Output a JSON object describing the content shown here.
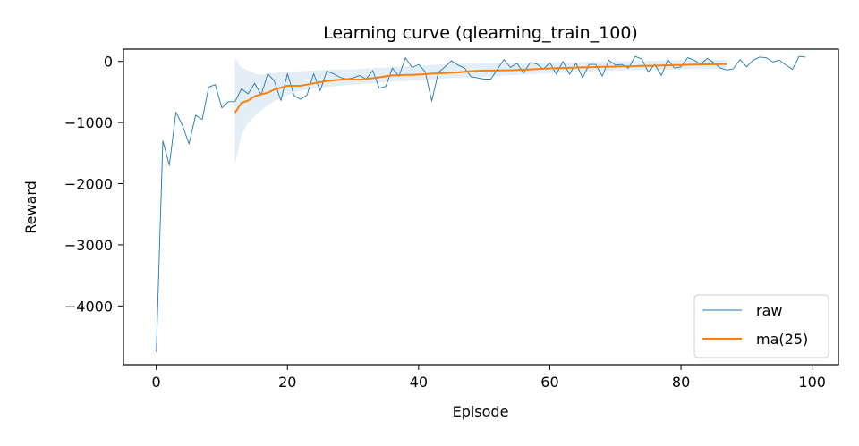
{
  "chart_data": {
    "type": "line",
    "title": "Learning curve (qlearning_train_100)",
    "xlabel": "Episode",
    "ylabel": "Reward",
    "xlim": [
      -5,
      104
    ],
    "ylim": [
      -4960,
      200
    ],
    "xticks": [
      0,
      20,
      40,
      60,
      80,
      100
    ],
    "yticks": [
      0,
      -1000,
      -2000,
      -3000,
      -4000
    ],
    "xtick_labels": [
      "0",
      "20",
      "40",
      "60",
      "80",
      "100"
    ],
    "ytick_labels": [
      "0",
      "−1000",
      "−2000",
      "−3000",
      "−4000"
    ],
    "grid": false,
    "legend_position": "lower-right",
    "series": [
      {
        "name": "raw",
        "color": "#1f77b4",
        "x": [
          0,
          1,
          2,
          3,
          4,
          5,
          6,
          7,
          8,
          9,
          10,
          11,
          12,
          13,
          14,
          15,
          16,
          17,
          18,
          19,
          20,
          21,
          22,
          23,
          24,
          25,
          26,
          27,
          28,
          29,
          30,
          31,
          32,
          33,
          34,
          35,
          36,
          37,
          38,
          39,
          40,
          41,
          42,
          43,
          44,
          45,
          46,
          47,
          48,
          49,
          50,
          51,
          52,
          53,
          54,
          55,
          56,
          57,
          58,
          59,
          60,
          61,
          62,
          63,
          64,
          65,
          66,
          67,
          68,
          69,
          70,
          71,
          72,
          73,
          74,
          75,
          76,
          77,
          78,
          79,
          80,
          81,
          82,
          83,
          84,
          85,
          86,
          87,
          88,
          89,
          90,
          91,
          92,
          93,
          94,
          95,
          96,
          97,
          98,
          99
        ],
        "y": [
          -4750,
          -1300,
          -1700,
          -830,
          -1050,
          -1350,
          -880,
          -950,
          -420,
          -380,
          -760,
          -660,
          -660,
          -450,
          -530,
          -360,
          -550,
          -200,
          -320,
          -640,
          -200,
          -560,
          -620,
          -550,
          -200,
          -480,
          -160,
          -200,
          -260,
          -290,
          -270,
          -230,
          -290,
          -150,
          -440,
          -410,
          -110,
          -240,
          60,
          -100,
          -50,
          -170,
          -650,
          -180,
          -90,
          10,
          -60,
          -110,
          -250,
          -270,
          -290,
          -290,
          -130,
          30,
          -100,
          -30,
          -190,
          -20,
          -40,
          -130,
          -20,
          -210,
          0,
          -210,
          -30,
          -270,
          -50,
          -50,
          -240,
          20,
          -60,
          -50,
          -110,
          80,
          40,
          -170,
          -50,
          -230,
          30,
          -110,
          -90,
          60,
          20,
          -50,
          50,
          -20,
          -110,
          -140,
          -120,
          30,
          -90,
          20,
          70,
          60,
          -10,
          20,
          -60,
          -130,
          80,
          70
        ]
      },
      {
        "name": "ma(25)",
        "color": "#ff7f0e",
        "x": [
          12,
          13,
          14,
          15,
          16,
          17,
          18,
          19,
          20,
          21,
          22,
          23,
          24,
          25,
          26,
          27,
          28,
          29,
          30,
          31,
          32,
          33,
          34,
          35,
          36,
          37,
          38,
          39,
          40,
          41,
          42,
          43,
          44,
          45,
          46,
          47,
          48,
          49,
          50,
          51,
          52,
          53,
          54,
          55,
          56,
          57,
          58,
          59,
          60,
          61,
          62,
          63,
          64,
          65,
          66,
          67,
          68,
          69,
          70,
          71,
          72,
          73,
          74,
          75,
          76,
          77,
          78,
          79,
          80,
          81,
          82,
          83,
          84,
          85,
          86,
          87
        ],
        "y": [
          -840,
          -680,
          -640,
          -570,
          -540,
          -510,
          -460,
          -430,
          -400,
          -400,
          -400,
          -380,
          -360,
          -340,
          -320,
          -310,
          -300,
          -290,
          -295,
          -300,
          -285,
          -275,
          -260,
          -245,
          -230,
          -225,
          -220,
          -220,
          -215,
          -210,
          -200,
          -195,
          -190,
          -185,
          -180,
          -170,
          -160,
          -155,
          -150,
          -150,
          -150,
          -145,
          -145,
          -140,
          -135,
          -130,
          -125,
          -120,
          -115,
          -110,
          -108,
          -105,
          -100,
          -98,
          -95,
          -92,
          -90,
          -88,
          -85,
          -82,
          -80,
          -78,
          -75,
          -72,
          -70,
          -68,
          -65,
          -60,
          -58,
          -55,
          -52,
          -50,
          -48,
          -47,
          -46,
          -45
        ]
      }
    ],
    "band": {
      "color": "#1f77b4",
      "x": [
        12,
        13,
        14,
        15,
        16,
        17,
        18,
        20,
        22,
        25,
        30,
        35,
        40,
        45,
        50,
        55,
        60,
        65,
        70,
        75,
        80,
        85,
        87
      ],
      "lower": [
        -1700,
        -1200,
        -1000,
        -900,
        -800,
        -720,
        -650,
        -550,
        -480,
        -430,
        -380,
        -340,
        -310,
        -270,
        -250,
        -220,
        -190,
        -170,
        -150,
        -140,
        -130,
        -120,
        -110
      ],
      "upper": [
        60,
        -100,
        -150,
        -200,
        -220,
        -200,
        -190,
        -170,
        -160,
        -140,
        -130,
        -100,
        -70,
        -40,
        -30,
        -30,
        -20,
        -10,
        0,
        10,
        20,
        25,
        25
      ]
    }
  }
}
